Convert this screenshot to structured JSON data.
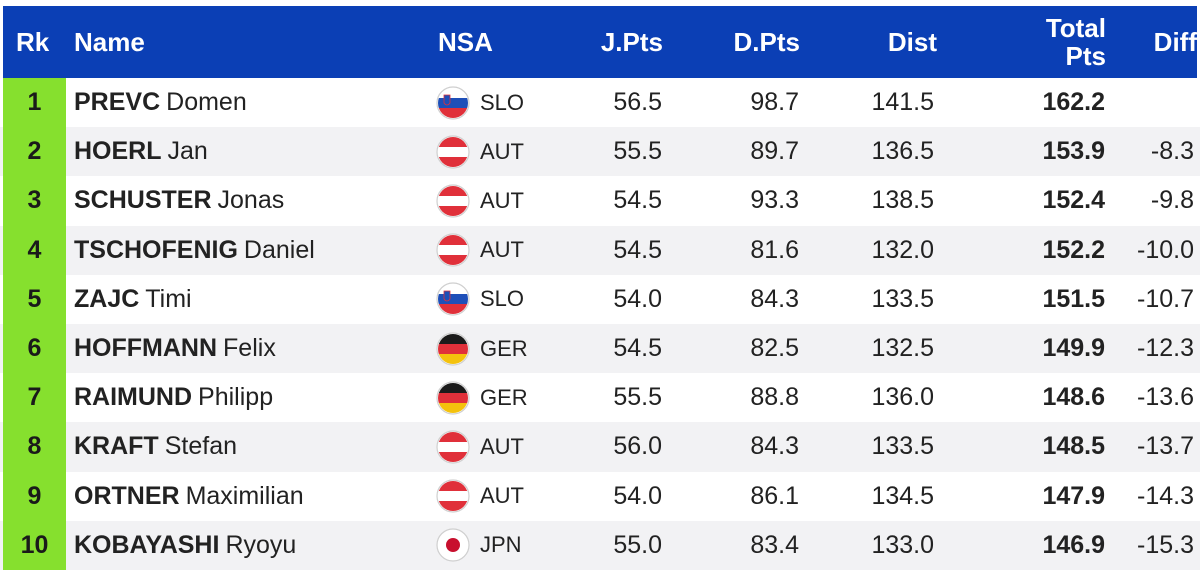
{
  "header": {
    "rk": "Rk",
    "name": "Name",
    "nsa": "NSA",
    "jpts": "J.Pts",
    "dpts": "D.Pts",
    "dist": "Dist",
    "total_line1": "Total",
    "total_line2": "Pts",
    "diff": "Diff"
  },
  "colors": {
    "header_bg": "#0b3fb5",
    "rank_bg": "#86e02e"
  },
  "rows": [
    {
      "rk": "1",
      "last": "PREVC",
      "first": "Domen",
      "flag": "slo-flag-icon",
      "nsa": "SLO",
      "jpts": "56.5",
      "dpts": "98.7",
      "dist": "141.5",
      "total": "162.2",
      "diff": ""
    },
    {
      "rk": "2",
      "last": "HOERL",
      "first": "Jan",
      "flag": "aut-flag-icon",
      "nsa": "AUT",
      "jpts": "55.5",
      "dpts": "89.7",
      "dist": "136.5",
      "total": "153.9",
      "diff": "-8.3"
    },
    {
      "rk": "3",
      "last": "SCHUSTER",
      "first": "Jonas",
      "flag": "aut-flag-icon",
      "nsa": "AUT",
      "jpts": "54.5",
      "dpts": "93.3",
      "dist": "138.5",
      "total": "152.4",
      "diff": "-9.8"
    },
    {
      "rk": "4",
      "last": "TSCHOFENIG",
      "first": "Daniel",
      "flag": "aut-flag-icon",
      "nsa": "AUT",
      "jpts": "54.5",
      "dpts": "81.6",
      "dist": "132.0",
      "total": "152.2",
      "diff": "-10.0"
    },
    {
      "rk": "5",
      "last": "ZAJC",
      "first": "Timi",
      "flag": "slo-flag-icon",
      "nsa": "SLO",
      "jpts": "54.0",
      "dpts": "84.3",
      "dist": "133.5",
      "total": "151.5",
      "diff": "-10.7"
    },
    {
      "rk": "6",
      "last": "HOFFMANN",
      "first": "Felix",
      "flag": "ger-flag-icon",
      "nsa": "GER",
      "jpts": "54.5",
      "dpts": "82.5",
      "dist": "132.5",
      "total": "149.9",
      "diff": "-12.3"
    },
    {
      "rk": "7",
      "last": "RAIMUND",
      "first": "Philipp",
      "flag": "ger-flag-icon",
      "nsa": "GER",
      "jpts": "55.5",
      "dpts": "88.8",
      "dist": "136.0",
      "total": "148.6",
      "diff": "-13.6"
    },
    {
      "rk": "8",
      "last": "KRAFT",
      "first": "Stefan",
      "flag": "aut-flag-icon",
      "nsa": "AUT",
      "jpts": "56.0",
      "dpts": "84.3",
      "dist": "133.5",
      "total": "148.5",
      "diff": "-13.7"
    },
    {
      "rk": "9",
      "last": "ORTNER",
      "first": "Maximilian",
      "flag": "aut-flag-icon",
      "nsa": "AUT",
      "jpts": "54.0",
      "dpts": "86.1",
      "dist": "134.5",
      "total": "147.9",
      "diff": "-14.3"
    },
    {
      "rk": "10",
      "last": "KOBAYASHI",
      "first": "Ryoyu",
      "flag": "jpn-flag-icon",
      "nsa": "JPN",
      "jpts": "55.0",
      "dpts": "83.4",
      "dist": "133.0",
      "total": "146.9",
      "diff": "-15.3"
    }
  ]
}
